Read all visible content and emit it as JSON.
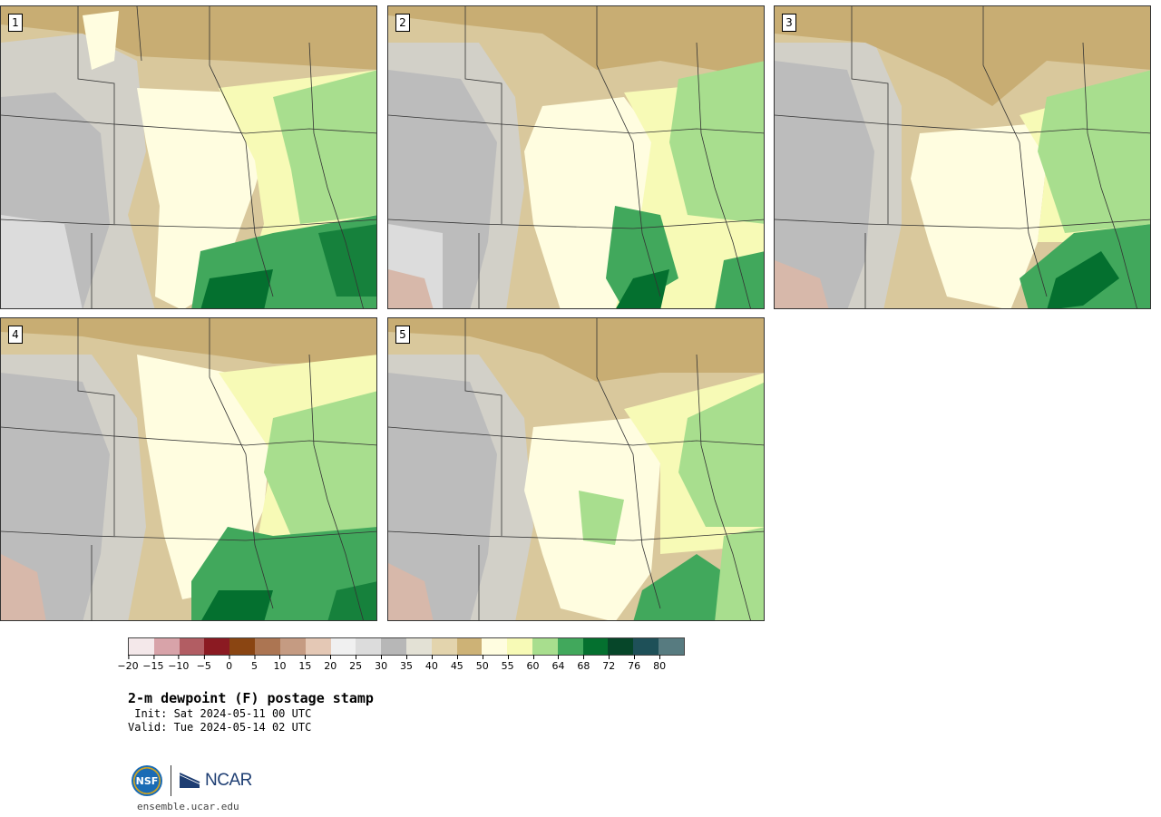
{
  "panels": [
    {
      "label": "1"
    },
    {
      "label": "2"
    },
    {
      "label": "3"
    },
    {
      "label": "4"
    },
    {
      "label": "5"
    }
  ],
  "colorbar": {
    "colors": [
      "#f4e8ea",
      "#d8a3a9",
      "#b25d63",
      "#8b1a22",
      "#8a4512",
      "#ac7552",
      "#c59b82",
      "#e4c8b5",
      "#f0f0f0",
      "#dcdcdc",
      "#b7b7b7",
      "#e3e1d5",
      "#e3d4ad",
      "#cdb276",
      "#fffde0",
      "#f7fab6",
      "#a8de8e",
      "#41a85c",
      "#04702f",
      "#064629",
      "#1e5058",
      "#577b80"
    ],
    "tick_labels": [
      "−20",
      "−15",
      "−10",
      "−5",
      "0",
      "5",
      "10",
      "15",
      "20",
      "25",
      "30",
      "35",
      "40",
      "45",
      "50",
      "55",
      "60",
      "64",
      "68",
      "72",
      "76",
      "80"
    ]
  },
  "title": "2-m dewpoint (F) postage stamp",
  "init_text": " Init: Sat 2024-05-11 00 UTC",
  "valid_text": "Valid: Tue 2024-05-14 02 UTC",
  "logo": {
    "nsf_text": "NSF",
    "ncar_text": "NCAR"
  },
  "site": "ensemble.ucar.edu"
}
